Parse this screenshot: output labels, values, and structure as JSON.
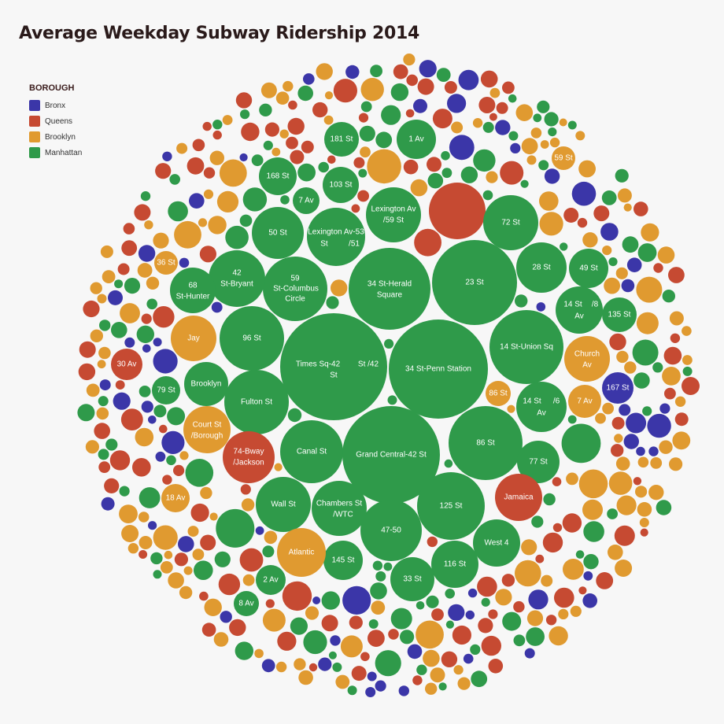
{
  "chart_data": {
    "type": "bubble",
    "title": "Average Weekday Subway Ridership 2014",
    "legend": {
      "title": "BOROUGH",
      "placement": "top-left",
      "items": [
        {
          "key": "bronx",
          "label": "Bronx",
          "color": "#3b36a8"
        },
        {
          "key": "queens",
          "label": "Queens",
          "color": "#c64a32"
        },
        {
          "key": "brooklyn",
          "label": "Brooklyn",
          "color": "#e09a30"
        },
        {
          "key": "manhattan",
          "label": "Manhattan",
          "color": "#2f9a4a"
        }
      ]
    },
    "labeled_stations": [
      {
        "label": "Times Sq-42 St /42 St",
        "borough": "manhattan"
      },
      {
        "label": "34 St-Penn Station",
        "borough": "manhattan"
      },
      {
        "label": "Grand Central-42 St",
        "borough": "manhattan"
      },
      {
        "label": "34 St-Herald Square",
        "borough": "manhattan"
      },
      {
        "label": "23 St",
        "borough": "manhattan"
      },
      {
        "label": "14 St-Union Sq",
        "borough": "manhattan"
      },
      {
        "label": "86 St",
        "borough": "manhattan"
      },
      {
        "label": "125 St",
        "borough": "manhattan"
      },
      {
        "label": "47-50",
        "borough": "manhattan"
      },
      {
        "label": "Chambers St /WTC",
        "borough": "manhattan"
      },
      {
        "label": "Wall St",
        "borough": "manhattan"
      },
      {
        "label": "Canal St",
        "borough": "manhattan"
      },
      {
        "label": "Fulton St",
        "borough": "manhattan"
      },
      {
        "label": "96 St",
        "borough": "manhattan"
      },
      {
        "label": "59 St-Columbus Circle",
        "borough": "manhattan"
      },
      {
        "label": "42 St-Bryant",
        "borough": "manhattan"
      },
      {
        "label": "Lexington Av-53 St /51",
        "borough": "manhattan"
      },
      {
        "label": "Lexington Av /59 St",
        "borough": "manhattan"
      },
      {
        "label": "50 St",
        "borough": "manhattan"
      },
      {
        "label": "72 St",
        "borough": "manhattan"
      },
      {
        "label": "28 St",
        "borough": "manhattan"
      },
      {
        "label": "49 St",
        "borough": "manhattan"
      },
      {
        "label": "14 St /8 Av",
        "borough": "manhattan"
      },
      {
        "label": "135 St",
        "borough": "manhattan"
      },
      {
        "label": "14 St /6 Av",
        "borough": "manhattan"
      },
      {
        "label": "77 St",
        "borough": "manhattan"
      },
      {
        "label": "West 4",
        "borough": "manhattan"
      },
      {
        "label": "116 St",
        "borough": "manhattan"
      },
      {
        "label": "33 St",
        "borough": "manhattan"
      },
      {
        "label": "145 St",
        "borough": "manhattan"
      },
      {
        "label": "2 Av",
        "borough": "manhattan"
      },
      {
        "label": "68 St-Hunter",
        "borough": "manhattan"
      },
      {
        "label": "79 St",
        "borough": "manhattan"
      },
      {
        "label": "Brooklyn",
        "borough": "manhattan"
      },
      {
        "label": "168 St",
        "borough": "manhattan"
      },
      {
        "label": "181 St",
        "borough": "manhattan"
      },
      {
        "label": "1 Av",
        "borough": "manhattan"
      },
      {
        "label": "7 Av",
        "borough": "manhattan"
      },
      {
        "label": "103 St",
        "borough": "manhattan"
      },
      {
        "label": "8 Av",
        "borough": "manhattan"
      },
      {
        "label": "Jay",
        "borough": "brooklyn"
      },
      {
        "label": "Court St /Borough",
        "borough": "brooklyn"
      },
      {
        "label": "Atlantic",
        "borough": "brooklyn"
      },
      {
        "label": "Church Av",
        "borough": "brooklyn"
      },
      {
        "label": "7 Av",
        "borough": "brooklyn"
      },
      {
        "label": "86 St",
        "borough": "brooklyn"
      },
      {
        "label": "59 St",
        "borough": "brooklyn"
      },
      {
        "label": "36 St",
        "borough": "brooklyn"
      },
      {
        "label": "18 Av",
        "borough": "brooklyn"
      },
      {
        "label": "74-Bway /Jackson",
        "borough": "queens"
      },
      {
        "label": "Jamaica",
        "borough": "queens"
      },
      {
        "label": "30 Av",
        "borough": "queens"
      },
      {
        "label": "167 St",
        "borough": "bronx"
      }
    ]
  }
}
